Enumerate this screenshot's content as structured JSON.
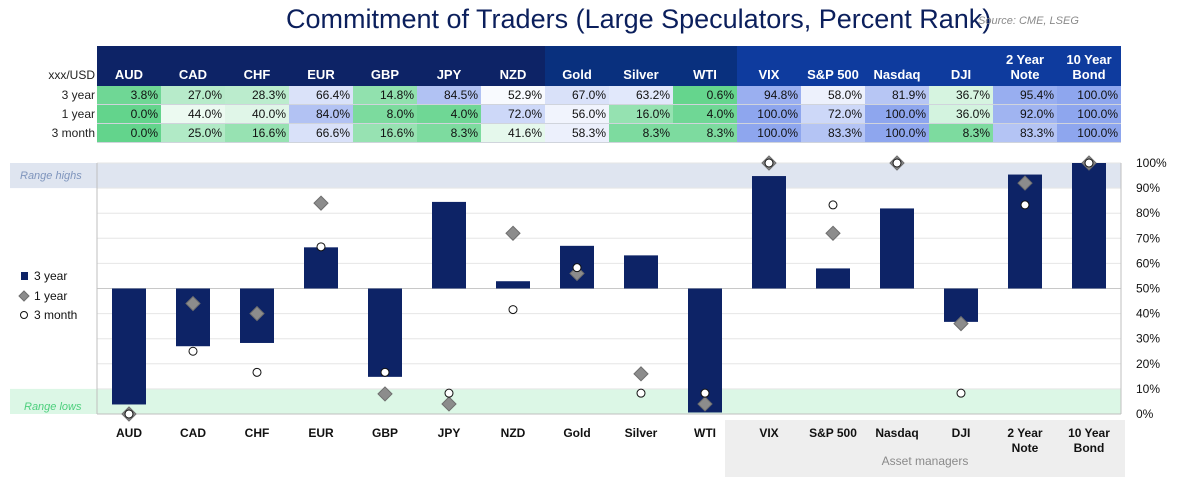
{
  "title": "Commitment of Traders (Large Speculators, Percent Rank)",
  "source": "Source: CME, LSEG",
  "table": {
    "corner_label": "xxx/USD",
    "row_labels": [
      "3 year",
      "1 year",
      "3 month"
    ]
  },
  "chart_data": {
    "type": "bar",
    "categories": [
      "AUD",
      "CAD",
      "CHF",
      "EUR",
      "GBP",
      "JPY",
      "NZD",
      "Gold",
      "Silver",
      "WTI",
      "VIX",
      "S&P 500",
      "Nasdaq",
      "DJI",
      "2 Year Note",
      "10 Year Bond"
    ],
    "header_labels": [
      "AUD",
      "CAD",
      "CHF",
      "EUR",
      "GBP",
      "JPY",
      "NZD",
      "Gold",
      "Silver",
      "WTI",
      "VIX",
      "S&P 500",
      "Nasdaq",
      "DJI",
      "2 Year\nNote",
      "10 Year\nBond"
    ],
    "axis_labels": [
      "AUD",
      "CAD",
      "CHF",
      "EUR",
      "GBP",
      "JPY",
      "NZD",
      "Gold",
      "Silver",
      "WTI",
      "VIX",
      "S&P 500",
      "Nasdaq",
      "DJI",
      "2 Year\nNote",
      "10 Year\nBond"
    ],
    "series": [
      {
        "name": "3 year",
        "values": [
          3.8,
          27.0,
          28.3,
          66.4,
          14.8,
          84.5,
          52.9,
          67.0,
          63.2,
          0.6,
          94.8,
          58.0,
          81.9,
          36.7,
          95.4,
          100.0
        ],
        "marker": "bar",
        "color": "#0d2366"
      },
      {
        "name": "1 year",
        "values": [
          0.0,
          44.0,
          40.0,
          84.0,
          8.0,
          4.0,
          72.0,
          56.0,
          16.0,
          4.0,
          100.0,
          72.0,
          100.0,
          36.0,
          92.0,
          100.0
        ],
        "marker": "diamond",
        "color": "#8c8c8c"
      },
      {
        "name": "3 month",
        "values": [
          0.0,
          25.0,
          16.6,
          66.6,
          16.6,
          8.3,
          41.6,
          58.3,
          8.3,
          8.3,
          100.0,
          83.3,
          100.0,
          8.3,
          83.3,
          100.0
        ],
        "marker": "circle",
        "color": "#ffffff"
      }
    ],
    "display_values": [
      [
        "3.8%",
        "27.0%",
        "28.3%",
        "66.4%",
        "14.8%",
        "84.5%",
        "52.9%",
        "67.0%",
        "63.2%",
        "0.6%",
        "94.8%",
        "58.0%",
        "81.9%",
        "36.7%",
        "95.4%",
        "100.0%"
      ],
      [
        "0.0%",
        "44.0%",
        "40.0%",
        "84.0%",
        "8.0%",
        "4.0%",
        "72.0%",
        "56.0%",
        "16.0%",
        "4.0%",
        "100.0%",
        "72.0%",
        "100.0%",
        "36.0%",
        "92.0%",
        "100.0%"
      ],
      [
        "0.0%",
        "25.0%",
        "16.6%",
        "66.6%",
        "16.6%",
        "8.3%",
        "41.6%",
        "58.3%",
        "8.3%",
        "8.3%",
        "100.0%",
        "83.3%",
        "100.0%",
        "8.3%",
        "83.3%",
        "100.0%"
      ]
    ],
    "baseline": 50,
    "ylim": [
      0,
      100
    ],
    "yticks": [
      0,
      10,
      20,
      30,
      40,
      50,
      60,
      70,
      80,
      90,
      100
    ],
    "ytick_labels": [
      "0%",
      "10%",
      "20%",
      "30%",
      "40%",
      "50%",
      "60%",
      "70%",
      "80%",
      "90%",
      "100%"
    ],
    "range_highs": {
      "label": "Range highs",
      "from": 90,
      "to": 100,
      "color": "#dfe5f0"
    },
    "range_lows": {
      "label": "Range lows",
      "from": 0,
      "to": 10,
      "color": "#dcf7e6"
    },
    "group_label": "Asset managers",
    "group_start_index": 10,
    "legend_placement": "left"
  },
  "colors": {
    "header_fx": "#0d2366",
    "header_commodities": "#09307e",
    "header_asset_managers": "#0e3b9e",
    "low_cell": "#63d48c",
    "mid_cell": "#ffffff",
    "high_cell": "#8ea6ee"
  }
}
